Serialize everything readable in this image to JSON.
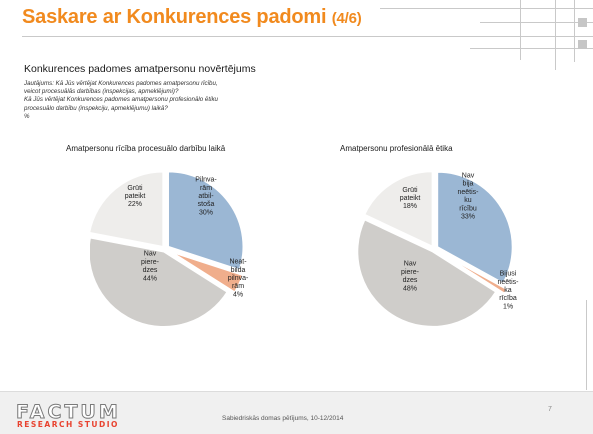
{
  "slide": {
    "title": "Saskare ar Konkurences padomi",
    "title_part": "(4/6)",
    "subtitle": "Konkurences padomes amatpersonu novērtējums",
    "question_lines": [
      "Jautājums: Kā Jūs vērtējat Konkurences padomes amatpersonu rīcību,",
      "veicot procesuālās darbības (inspekcijas, apmeklējumi)?",
      "Kā Jūs vērtējat Konkurences padomes amatpersonu profesionālo ētiku",
      "procesuālo darbību (inspekciju, apmeklējumu) laikā?",
      "%"
    ],
    "footer_text": "Sabiedriskās domas pētījums, 10-12/2014",
    "page_number": "7"
  },
  "logo": {
    "main": "FACTUM",
    "sub": "RESEARCH STUDIO"
  },
  "colors": {
    "title": "#f18a1e",
    "blue": "#9bb7d4",
    "orange": "#f0ae8c",
    "gray": "#cfcdca",
    "light_gray": "#eeedeb"
  },
  "chart_data": [
    {
      "type": "pie",
      "title": "Amatpersonu rīcība procesuālo darbību laikā",
      "unit": "%",
      "slices": [
        {
          "label_lines": [
            "Pilnva-",
            "rām",
            "atbil-",
            "stoša",
            "30%"
          ],
          "value": 30,
          "color": "#9bb7d4"
        },
        {
          "label_lines": [
            "Neat-",
            "bilda",
            "pilnva-",
            "rām",
            "4%"
          ],
          "value": 4,
          "color": "#f0ae8c"
        },
        {
          "label_lines": [
            "Nav",
            "piere-",
            "dzes",
            "44%"
          ],
          "value": 44,
          "color": "#cfcdca"
        },
        {
          "label_lines": [
            "Grūti",
            "pateikt",
            "22%"
          ],
          "value": 22,
          "color": "#eeedeb"
        }
      ]
    },
    {
      "type": "pie",
      "title": "Amatpersonu profesionālā ētika",
      "unit": "%",
      "slices": [
        {
          "label_lines": [
            "Nav",
            "bija",
            "neētis-",
            "ku",
            "rīcību",
            "33%"
          ],
          "value": 33,
          "color": "#9bb7d4"
        },
        {
          "label_lines": [
            "Bijusi",
            "neētis-",
            "ka",
            "rīcība",
            "1%"
          ],
          "value": 1,
          "color": "#f0ae8c"
        },
        {
          "label_lines": [
            "Nav",
            "piere-",
            "dzes",
            "48%"
          ],
          "value": 48,
          "color": "#cfcdca"
        },
        {
          "label_lines": [
            "Grūti",
            "pateikt",
            "18%"
          ],
          "value": 18,
          "color": "#eeedeb"
        }
      ]
    }
  ]
}
